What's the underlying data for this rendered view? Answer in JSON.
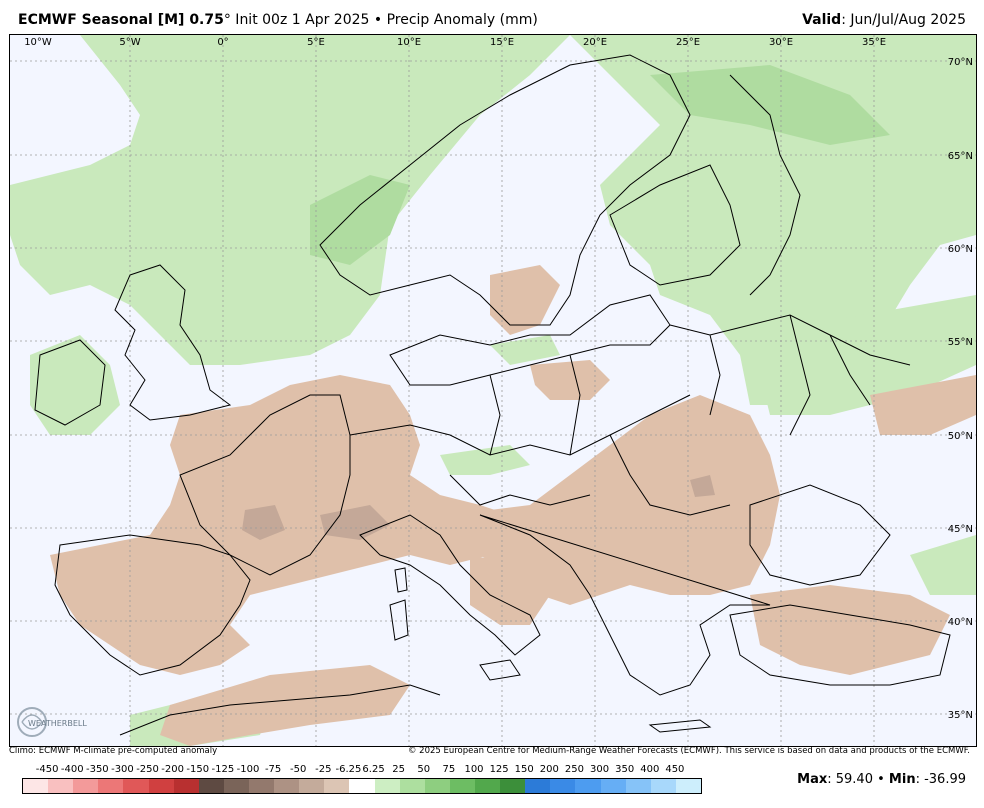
{
  "header": {
    "title_bold": "ECMWF Seasonal [M] 0.75",
    "title_rest": "° Init 00z 1 Apr 2025 • Precip Anomaly (mm)",
    "valid_label": "Valid",
    "valid_value": ": Jun/Jul/Aug 2025"
  },
  "map": {
    "lon_labels": [
      "10°W",
      "5°W",
      "0°",
      "5°E",
      "10°E",
      "15°E",
      "20°E",
      "25°E",
      "30°E",
      "35°E"
    ],
    "lat_labels": [
      "70°N",
      "65°N",
      "60°N",
      "55°N",
      "50°N",
      "45°N",
      "40°N",
      "35°N"
    ],
    "colors": {
      "ocean": "#f3f6ff",
      "dry": "#dfc0aa",
      "dry_strong": "#c4a898",
      "wet": "#c9e9bc",
      "wet_strong": "#afdca0",
      "coast": "#000000",
      "grid": "#9a9a9a"
    }
  },
  "footer": {
    "left": "Climo: ECMWF M-climate pre-computed anomaly",
    "right": "© 2025 European Centre for Medium-Range Weather Forecasts (ECMWF). This service is based on data and products of the ECMWF."
  },
  "logo": {
    "text": "WEATHERBELL"
  },
  "legend": {
    "labels": [
      "-450",
      "-400",
      "-350",
      "-300",
      "-250",
      "-200",
      "-150",
      "-125",
      "-100",
      "-75",
      "-50",
      "-25",
      "-6.25",
      "6.25",
      "25",
      "50",
      "75",
      "100",
      "125",
      "150",
      "200",
      "250",
      "300",
      "350",
      "400",
      "450"
    ],
    "colors": [
      "#fde6e6",
      "#f9c0c0",
      "#f39a9a",
      "#ec7777",
      "#e05858",
      "#d04040",
      "#b83030",
      "#5e4a42",
      "#7a6459",
      "#93796d",
      "#ad9284",
      "#c4ab9b",
      "#dcc5b4",
      "#ffffff",
      "#cdeec3",
      "#addf9f",
      "#8ece80",
      "#6dbd63",
      "#52a84c",
      "#3c8f3a",
      "#2c7bd8",
      "#3a8ae6",
      "#4d9cf0",
      "#66aef5",
      "#86c3f8",
      "#a8d8fb",
      "#cdeefc"
    ]
  },
  "stats": {
    "max_label": "Max",
    "max_value": ": 59.40 • ",
    "min_label": "Min",
    "min_value": ": -36.99"
  }
}
